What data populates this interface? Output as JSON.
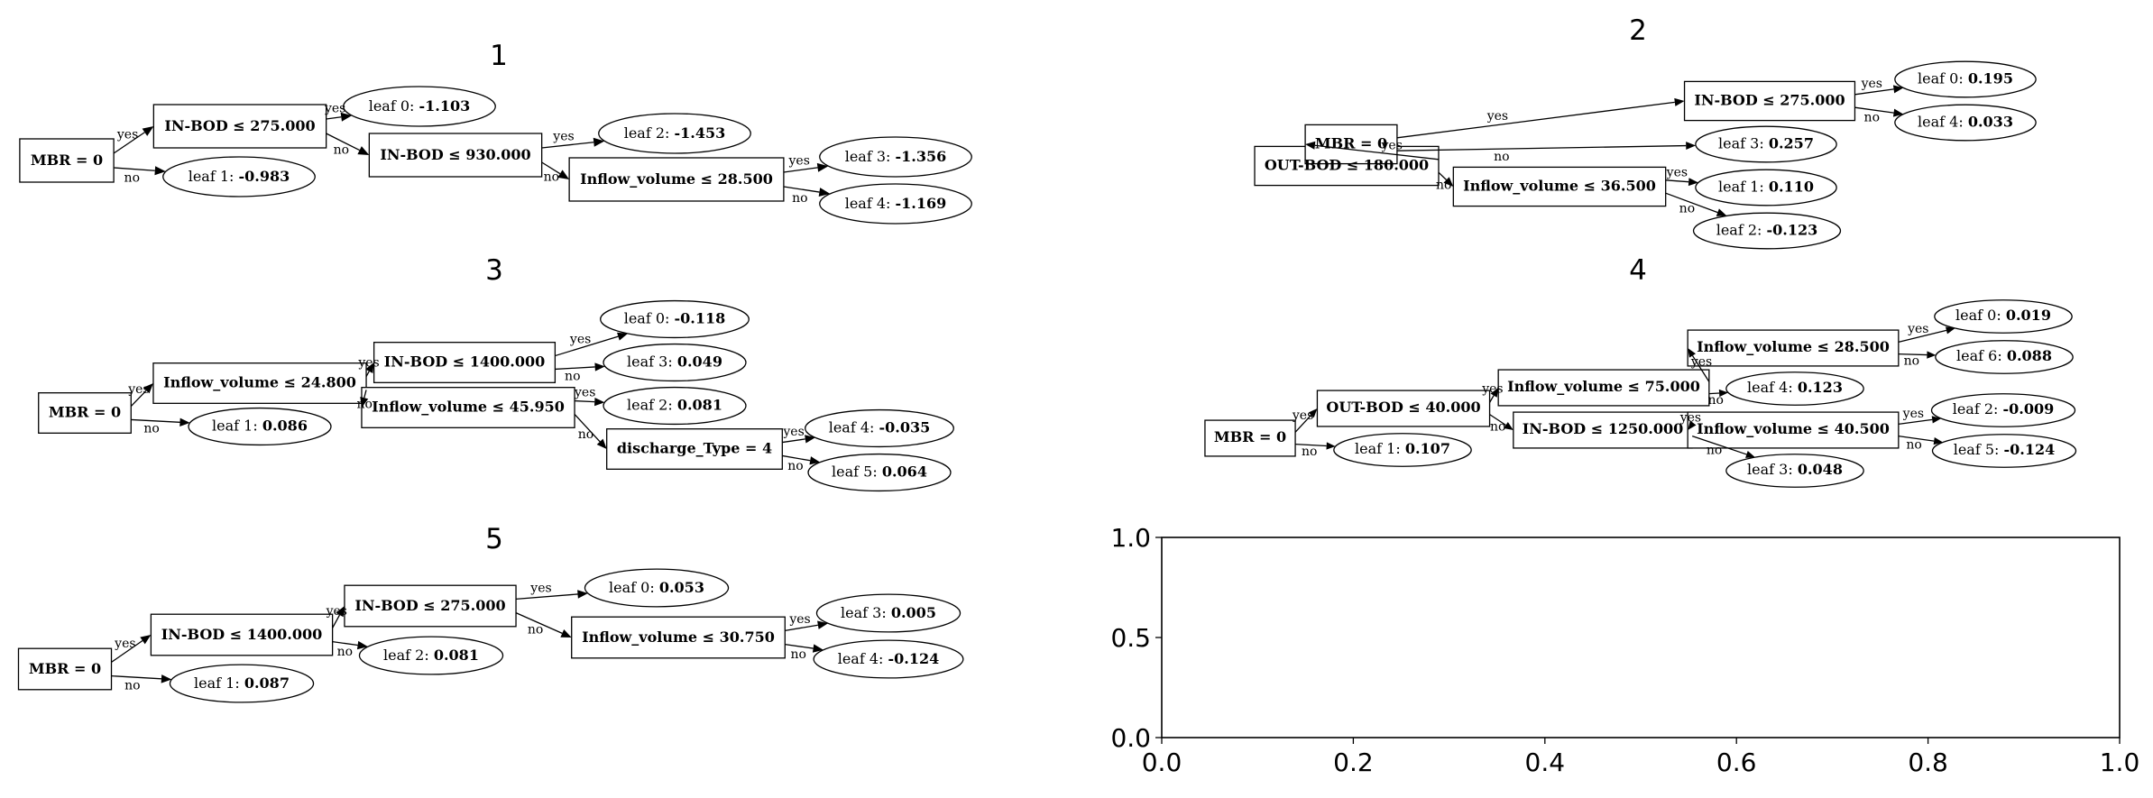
{
  "trees": [
    {
      "title": "1",
      "nodes": [
        {
          "id": "n0",
          "shape": "box",
          "name": "MBR = 0",
          "value": ""
        },
        {
          "id": "n1",
          "shape": "box",
          "name": "IN-BOD ≤ 275.000",
          "value": ""
        },
        {
          "id": "n2",
          "shape": "ellipse",
          "name": "leaf 1: ",
          "value": "-0.983"
        },
        {
          "id": "n3",
          "shape": "ellipse",
          "name": "leaf 0: ",
          "value": "-1.103"
        },
        {
          "id": "n4",
          "shape": "box",
          "name": "IN-BOD ≤ 930.000",
          "value": ""
        },
        {
          "id": "n5",
          "shape": "ellipse",
          "name": "leaf 2: ",
          "value": "-1.453"
        },
        {
          "id": "n6",
          "shape": "box",
          "name": "Inflow_volume ≤ 28.500",
          "value": ""
        },
        {
          "id": "n7",
          "shape": "ellipse",
          "name": "leaf 3: ",
          "value": "-1.356"
        },
        {
          "id": "n8",
          "shape": "ellipse",
          "name": "leaf 4: ",
          "value": "-1.169"
        }
      ],
      "edges": [
        {
          "from": "n0",
          "to": "n1",
          "label": "yes"
        },
        {
          "from": "n0",
          "to": "n2",
          "label": "no"
        },
        {
          "from": "n1",
          "to": "n3",
          "label": "yes"
        },
        {
          "from": "n1",
          "to": "n4",
          "label": "no"
        },
        {
          "from": "n4",
          "to": "n5",
          "label": "yes"
        },
        {
          "from": "n4",
          "to": "n6",
          "label": "no"
        },
        {
          "from": "n6",
          "to": "n7",
          "label": "yes"
        },
        {
          "from": "n6",
          "to": "n8",
          "label": "no"
        }
      ]
    },
    {
      "title": "2",
      "nodes": [
        {
          "id": "n0",
          "shape": "box",
          "name": "OUT-BOD ≤ 180.000",
          "value": ""
        },
        {
          "id": "n1",
          "shape": "box",
          "name": "MBR = 0",
          "value": ""
        },
        {
          "id": "n2",
          "shape": "box",
          "name": "Inflow_volume ≤ 36.500",
          "value": ""
        },
        {
          "id": "n3",
          "shape": "box",
          "name": "IN-BOD ≤ 275.000",
          "value": ""
        },
        {
          "id": "n4",
          "shape": "ellipse",
          "name": "leaf 3: ",
          "value": "0.257"
        },
        {
          "id": "n5",
          "shape": "ellipse",
          "name": "leaf 0: ",
          "value": "0.195"
        },
        {
          "id": "n6",
          "shape": "ellipse",
          "name": "leaf 4: ",
          "value": "0.033"
        },
        {
          "id": "n7",
          "shape": "ellipse",
          "name": "leaf 1: ",
          "value": "0.110"
        },
        {
          "id": "n8",
          "shape": "ellipse",
          "name": "leaf 2: ",
          "value": "-0.123"
        }
      ],
      "edges": [
        {
          "from": "n0",
          "to": "n1",
          "label": "yes"
        },
        {
          "from": "n0",
          "to": "n2",
          "label": "no"
        },
        {
          "from": "n1",
          "to": "n3",
          "label": "yes"
        },
        {
          "from": "n1",
          "to": "n4",
          "label": "no"
        },
        {
          "from": "n3",
          "to": "n5",
          "label": "yes"
        },
        {
          "from": "n3",
          "to": "n6",
          "label": "no"
        },
        {
          "from": "n2",
          "to": "n7",
          "label": "yes"
        },
        {
          "from": "n2",
          "to": "n8",
          "label": "no"
        }
      ]
    },
    {
      "title": "3",
      "nodes": [
        {
          "id": "n0",
          "shape": "box",
          "name": "MBR = 0",
          "value": ""
        },
        {
          "id": "n1",
          "shape": "box",
          "name": "Inflow_volume ≤ 24.800",
          "value": ""
        },
        {
          "id": "n2",
          "shape": "ellipse",
          "name": "leaf 1: ",
          "value": "0.086"
        },
        {
          "id": "n3",
          "shape": "box",
          "name": "IN-BOD ≤ 1400.000",
          "value": ""
        },
        {
          "id": "n4",
          "shape": "box",
          "name": "Inflow_volume ≤ 45.950",
          "value": ""
        },
        {
          "id": "n5",
          "shape": "ellipse",
          "name": "leaf 0: ",
          "value": "-0.118"
        },
        {
          "id": "n6",
          "shape": "ellipse",
          "name": "leaf 3: ",
          "value": "0.049"
        },
        {
          "id": "n7",
          "shape": "ellipse",
          "name": "leaf 2: ",
          "value": "0.081"
        },
        {
          "id": "n8",
          "shape": "box",
          "name": "discharge_Type = 4",
          "value": ""
        },
        {
          "id": "n9",
          "shape": "ellipse",
          "name": "leaf 4: ",
          "value": "-0.035"
        },
        {
          "id": "n10",
          "shape": "ellipse",
          "name": "leaf 5: ",
          "value": "0.064"
        }
      ],
      "edges": [
        {
          "from": "n0",
          "to": "n1",
          "label": "yes"
        },
        {
          "from": "n0",
          "to": "n2",
          "label": "no"
        },
        {
          "from": "n1",
          "to": "n3",
          "label": "yes"
        },
        {
          "from": "n1",
          "to": "n4",
          "label": "no"
        },
        {
          "from": "n3",
          "to": "n5",
          "label": "yes"
        },
        {
          "from": "n3",
          "to": "n6",
          "label": "no"
        },
        {
          "from": "n4",
          "to": "n7",
          "label": "yes"
        },
        {
          "from": "n4",
          "to": "n8",
          "label": "no"
        },
        {
          "from": "n8",
          "to": "n9",
          "label": "yes"
        },
        {
          "from": "n8",
          "to": "n10",
          "label": "no"
        }
      ]
    },
    {
      "title": "4",
      "nodes": [
        {
          "id": "n0",
          "shape": "box",
          "name": "MBR = 0",
          "value": ""
        },
        {
          "id": "n1",
          "shape": "box",
          "name": "OUT-BOD ≤ 40.000",
          "value": ""
        },
        {
          "id": "n2",
          "shape": "ellipse",
          "name": "leaf 1: ",
          "value": "0.107"
        },
        {
          "id": "n3",
          "shape": "box",
          "name": "Inflow_volume ≤ 75.000",
          "value": ""
        },
        {
          "id": "n4",
          "shape": "box",
          "name": "IN-BOD ≤ 1250.000",
          "value": ""
        },
        {
          "id": "n5",
          "shape": "box",
          "name": "Inflow_volume ≤ 28.500",
          "value": ""
        },
        {
          "id": "n6",
          "shape": "ellipse",
          "name": "leaf 4: ",
          "value": "0.123"
        },
        {
          "id": "n7",
          "shape": "ellipse",
          "name": "leaf 0: ",
          "value": "0.019"
        },
        {
          "id": "n8",
          "shape": "ellipse",
          "name": "leaf 6: ",
          "value": "0.088"
        },
        {
          "id": "n9",
          "shape": "box",
          "name": "Inflow_volume ≤ 40.500",
          "value": ""
        },
        {
          "id": "n10",
          "shape": "ellipse",
          "name": "leaf 3: ",
          "value": "0.048"
        },
        {
          "id": "n11",
          "shape": "ellipse",
          "name": "leaf 2: ",
          "value": "-0.009"
        },
        {
          "id": "n12",
          "shape": "ellipse",
          "name": "leaf 5: ",
          "value": "-0.124"
        }
      ],
      "edges": [
        {
          "from": "n0",
          "to": "n1",
          "label": "yes"
        },
        {
          "from": "n0",
          "to": "n2",
          "label": "no"
        },
        {
          "from": "n1",
          "to": "n3",
          "label": "yes"
        },
        {
          "from": "n1",
          "to": "n4",
          "label": "no"
        },
        {
          "from": "n3",
          "to": "n5",
          "label": "yes"
        },
        {
          "from": "n3",
          "to": "n6",
          "label": "no"
        },
        {
          "from": "n5",
          "to": "n7",
          "label": "yes"
        },
        {
          "from": "n5",
          "to": "n8",
          "label": "no"
        },
        {
          "from": "n4",
          "to": "n9",
          "label": "yes"
        },
        {
          "from": "n4",
          "to": "n10",
          "label": "no"
        },
        {
          "from": "n9",
          "to": "n11",
          "label": "yes"
        },
        {
          "from": "n9",
          "to": "n12",
          "label": "no"
        }
      ]
    },
    {
      "title": "5",
      "nodes": [
        {
          "id": "n0",
          "shape": "box",
          "name": "MBR = 0",
          "value": ""
        },
        {
          "id": "n1",
          "shape": "box",
          "name": "IN-BOD ≤ 1400.000",
          "value": ""
        },
        {
          "id": "n2",
          "shape": "ellipse",
          "name": "leaf 1: ",
          "value": "0.087"
        },
        {
          "id": "n3",
          "shape": "box",
          "name": "IN-BOD ≤ 275.000",
          "value": ""
        },
        {
          "id": "n4",
          "shape": "ellipse",
          "name": "leaf 2: ",
          "value": "0.081"
        },
        {
          "id": "n5",
          "shape": "ellipse",
          "name": "leaf 0: ",
          "value": "0.053"
        },
        {
          "id": "n6",
          "shape": "box",
          "name": "Inflow_volume ≤ 30.750",
          "value": ""
        },
        {
          "id": "n7",
          "shape": "ellipse",
          "name": "leaf 3: ",
          "value": "0.005"
        },
        {
          "id": "n8",
          "shape": "ellipse",
          "name": "leaf 4: ",
          "value": "-0.124"
        }
      ],
      "edges": [
        {
          "from": "n0",
          "to": "n1",
          "label": "yes"
        },
        {
          "from": "n0",
          "to": "n2",
          "label": "no"
        },
        {
          "from": "n1",
          "to": "n3",
          "label": "yes"
        },
        {
          "from": "n1",
          "to": "n4",
          "label": "no"
        },
        {
          "from": "n3",
          "to": "n5",
          "label": "yes"
        },
        {
          "from": "n3",
          "to": "n6",
          "label": "no"
        },
        {
          "from": "n6",
          "to": "n7",
          "label": "yes"
        },
        {
          "from": "n6",
          "to": "n8",
          "label": "no"
        }
      ]
    }
  ],
  "empty_axes": {
    "xlim": [
      0,
      1
    ],
    "ylim": [
      0,
      1
    ],
    "xticks": [
      "0.0",
      "0.2",
      "0.4",
      "0.6",
      "0.8",
      "1.0"
    ],
    "yticks": [
      "0.0",
      "0.5",
      "1.0"
    ]
  }
}
